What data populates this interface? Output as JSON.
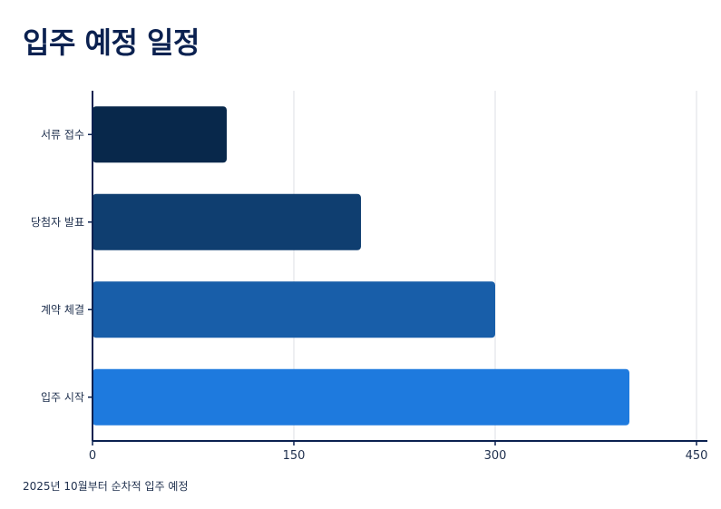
{
  "title": "입주 예정 일정",
  "footnote": "2025년 10월부터 순차적 입주 예정",
  "chart_data": {
    "type": "bar",
    "orientation": "horizontal",
    "title": "입주 예정 일정",
    "categories": [
      "서류 접수",
      "당첨자 발표",
      "계약 체결",
      "입주 시작"
    ],
    "values": [
      100,
      200,
      300,
      400
    ],
    "bar_colors": [
      "#08284b",
      "#0f3e70",
      "#185ea9",
      "#1e7ade"
    ],
    "xlim": [
      0,
      450
    ],
    "xticks": [
      0,
      150,
      300,
      450
    ],
    "xlabel": "",
    "ylabel": "",
    "grid": "vertical",
    "legend": "none"
  }
}
